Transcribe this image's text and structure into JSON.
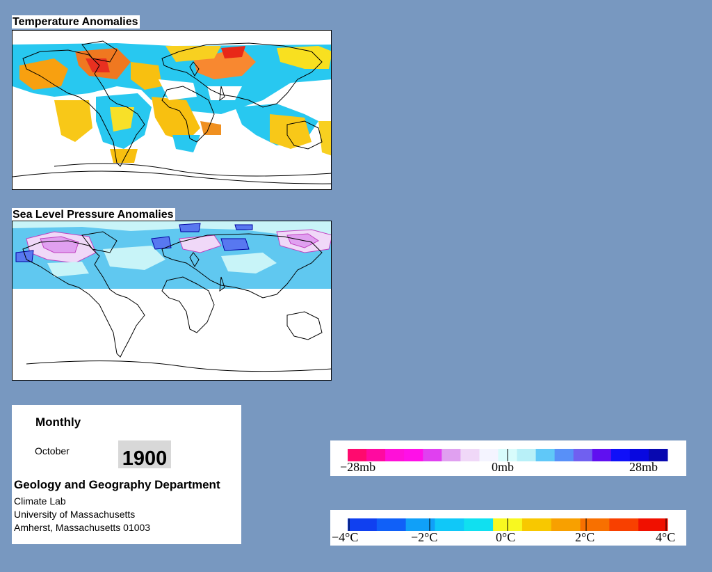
{
  "temperature_map": {
    "title": "Temperature Anomalies"
  },
  "pressure_map": {
    "title": "Sea Level Pressure Anomalies"
  },
  "info": {
    "period": "Monthly",
    "month": "October",
    "year": "1900",
    "department": "Geology and Geography Department",
    "lab": "Climate Lab",
    "university": "University of Massachusetts",
    "address": "Amherst, Massachusetts 01003"
  },
  "pressure_legend": {
    "labels": [
      "−28mb",
      "0mb",
      "28mb"
    ],
    "colors": [
      "#ff0a6e",
      "#ff0aa0",
      "#ff10d8",
      "#ff10e8",
      "#e040f0",
      "#e0a0f0",
      "#f0d8f8",
      "#f4f4ff",
      "#d8fcfc",
      "#b8f0f8",
      "#60c8f8",
      "#5890f8",
      "#7060f0",
      "#6010f0",
      "#1010f8",
      "#0808e0",
      "#0808b0"
    ]
  },
  "temperature_legend": {
    "labels": [
      "−4°C",
      "−2°C",
      "0°C",
      "2°C",
      "4°C"
    ],
    "colors": [
      "#1040f0",
      "#1060f8",
      "#10a0f8",
      "#10c8f8",
      "#10e0f0",
      "#f8f820",
      "#f8c800",
      "#f8a000",
      "#f87000",
      "#f84000",
      "#f01000"
    ]
  }
}
